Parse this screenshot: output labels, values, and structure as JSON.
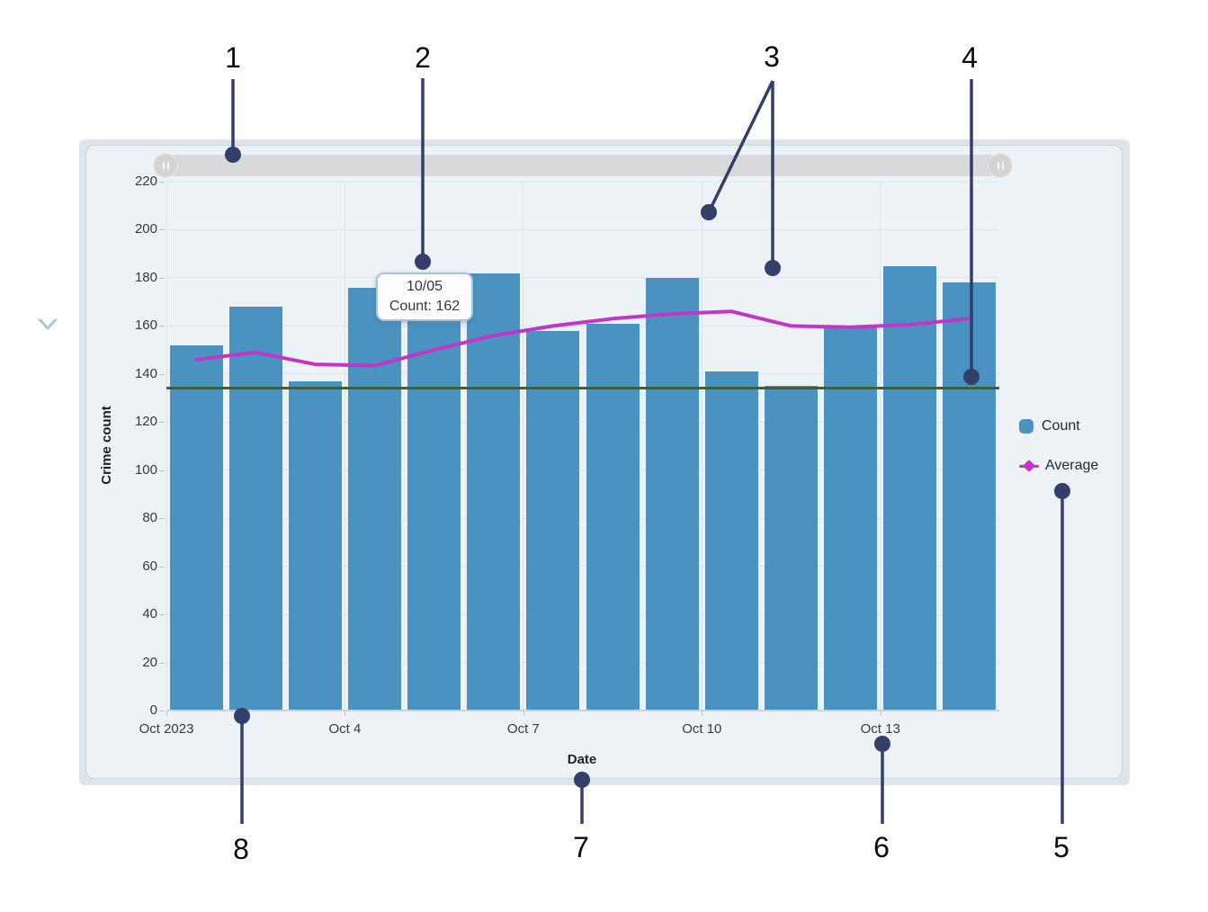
{
  "chart_data": {
    "type": "bar",
    "title": "",
    "xlabel": "Date",
    "ylabel": "Crime count",
    "categories": [
      "10/01",
      "10/02",
      "10/03",
      "10/04",
      "10/05",
      "10/06",
      "10/07",
      "10/08",
      "10/09",
      "10/10",
      "10/11",
      "10/12",
      "10/13",
      "10/14"
    ],
    "series": [
      {
        "name": "Count",
        "type": "bar",
        "color": "#4a92c0",
        "values": [
          152,
          168,
          137,
          176,
          162,
          182,
          158,
          161,
          180,
          141,
          135,
          160,
          185,
          178
        ]
      },
      {
        "name": "Average",
        "type": "line",
        "color": "#c136c6",
        "values": [
          146,
          149,
          144,
          143.5,
          150,
          156,
          160,
          163,
          165,
          166,
          160,
          159.5,
          160.5,
          163
        ]
      }
    ],
    "guide_line": {
      "value": 134,
      "color": "#3f5c46"
    },
    "ylim": [
      0,
      220
    ],
    "y_ticks": [
      0,
      20,
      40,
      60,
      80,
      100,
      120,
      140,
      160,
      180,
      200,
      220
    ],
    "x_ticks": [
      {
        "label": "Oct 2023",
        "index": 0
      },
      {
        "label": "Oct 4",
        "index": 3
      },
      {
        "label": "Oct 7",
        "index": 6
      },
      {
        "label": "Oct 10",
        "index": 9
      },
      {
        "label": "Oct 13",
        "index": 12
      }
    ],
    "grid": true,
    "legend_position": "right"
  },
  "tooltip": {
    "line1": "10/05",
    "line2": "Count: 162"
  },
  "legend": {
    "count_label": "Count",
    "average_label": "Average"
  },
  "slider": {
    "left_grip": "||",
    "right_grip": "||"
  },
  "annotations": {
    "color": "#333f6b",
    "items": [
      {
        "label": "1"
      },
      {
        "label": "2"
      },
      {
        "label": "3"
      },
      {
        "label": "4"
      },
      {
        "label": "5"
      },
      {
        "label": "6"
      },
      {
        "label": "7"
      },
      {
        "label": "8"
      }
    ]
  },
  "colors": {
    "bar": "#4a92c0",
    "average_line": "#c136c6",
    "guide_line": "#3f5c46",
    "annotation": "#333f6b",
    "panel_bg": "#edf2f6",
    "card_bg": "#dde5ea"
  }
}
